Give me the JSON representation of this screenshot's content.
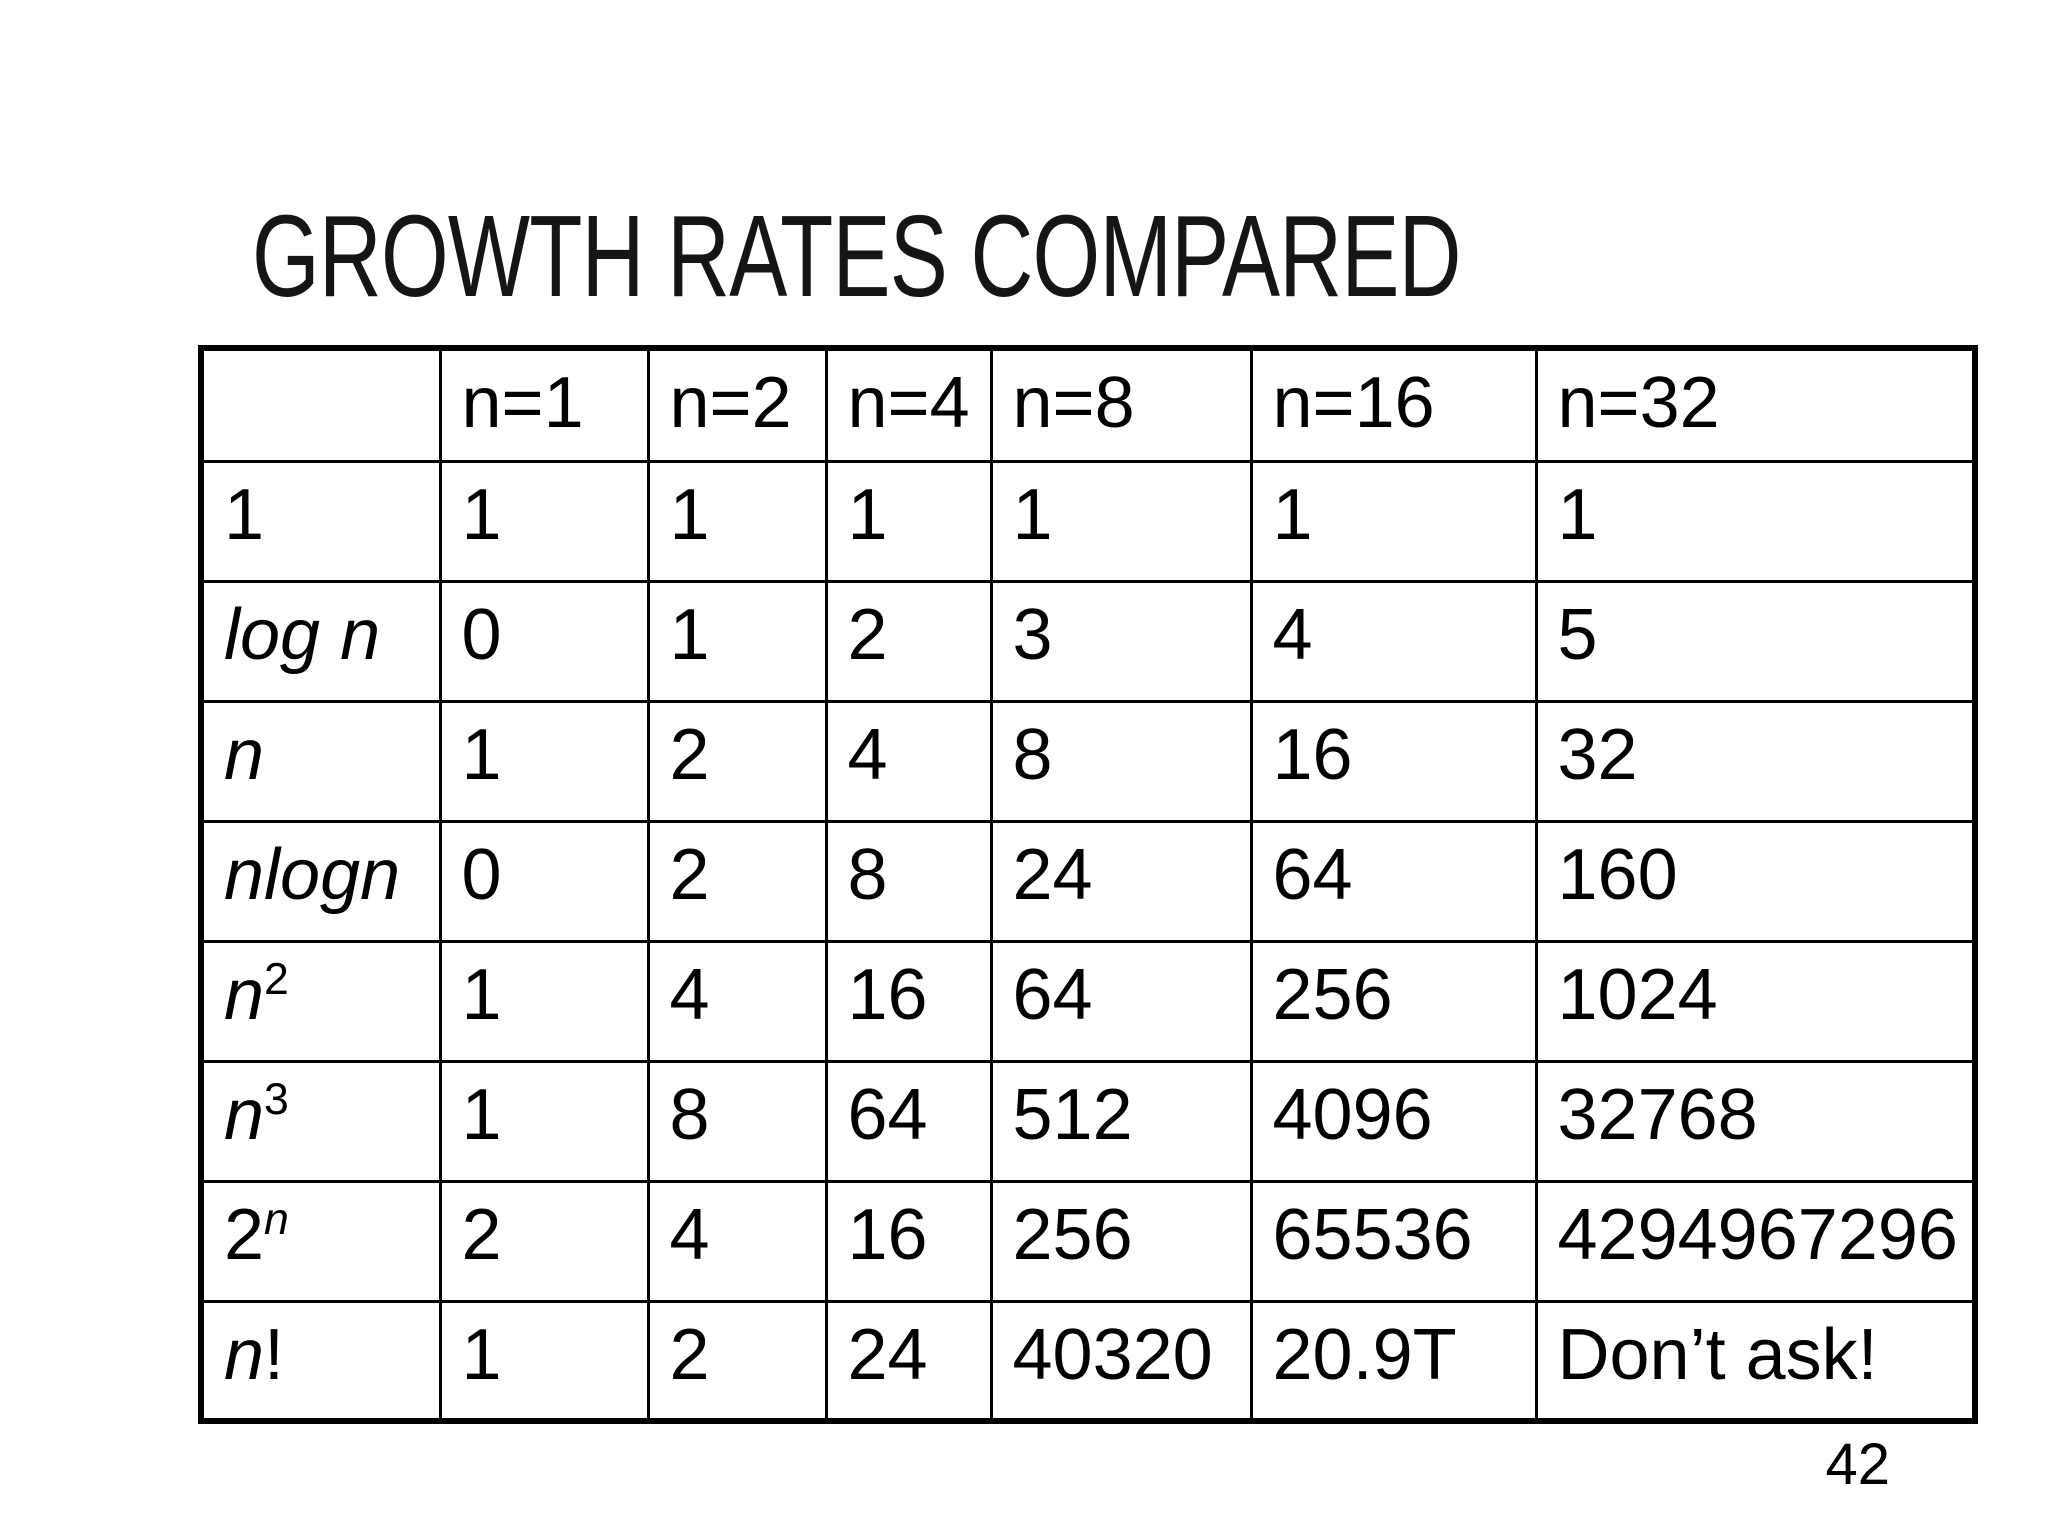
{
  "slide": {
    "title": "GROWTH RATES COMPARED",
    "page_number": "42",
    "background_color": "#ffffff",
    "text_color": "#000000",
    "border_color": "#000000"
  },
  "table": {
    "columns": [
      "",
      "n=1",
      "n=2",
      "n=4",
      "n=8",
      "n=16",
      "n=32"
    ],
    "rows": [
      {
        "label": [
          {
            "t": "1",
            "i": false
          }
        ],
        "values": [
          "1",
          "1",
          "1",
          "1",
          "1",
          "1"
        ]
      },
      {
        "label": [
          {
            "t": "log n",
            "i": true
          }
        ],
        "values": [
          "0",
          "1",
          "2",
          "3",
          "4",
          "5"
        ]
      },
      {
        "label": [
          {
            "t": "n",
            "i": true
          }
        ],
        "values": [
          "1",
          "2",
          "4",
          "8",
          "16",
          "32"
        ]
      },
      {
        "label": [
          {
            "t": "nlogn",
            "i": true
          }
        ],
        "values": [
          "0",
          "2",
          "8",
          "24",
          "64",
          "160"
        ]
      },
      {
        "label": [
          {
            "t": "n",
            "i": true
          },
          {
            "t": "2",
            "i": false,
            "sup": true
          }
        ],
        "values": [
          "1",
          "4",
          "16",
          "64",
          "256",
          "1024"
        ]
      },
      {
        "label": [
          {
            "t": "n",
            "i": true
          },
          {
            "t": "3",
            "i": false,
            "sup": true
          }
        ],
        "values": [
          "1",
          "8",
          "64",
          "512",
          "4096",
          "32768"
        ]
      },
      {
        "label": [
          {
            "t": "2",
            "i": false
          },
          {
            "t": "n",
            "i": true,
            "sup": true
          }
        ],
        "values": [
          "2",
          "4",
          "16",
          "256",
          "65536",
          "4294967296"
        ]
      },
      {
        "label": [
          {
            "t": "n",
            "i": true
          },
          {
            "t": "!",
            "i": false
          }
        ],
        "values": [
          "1",
          "2",
          "24",
          "40320",
          "20.9T",
          "Don’t ask!"
        ]
      }
    ]
  }
}
